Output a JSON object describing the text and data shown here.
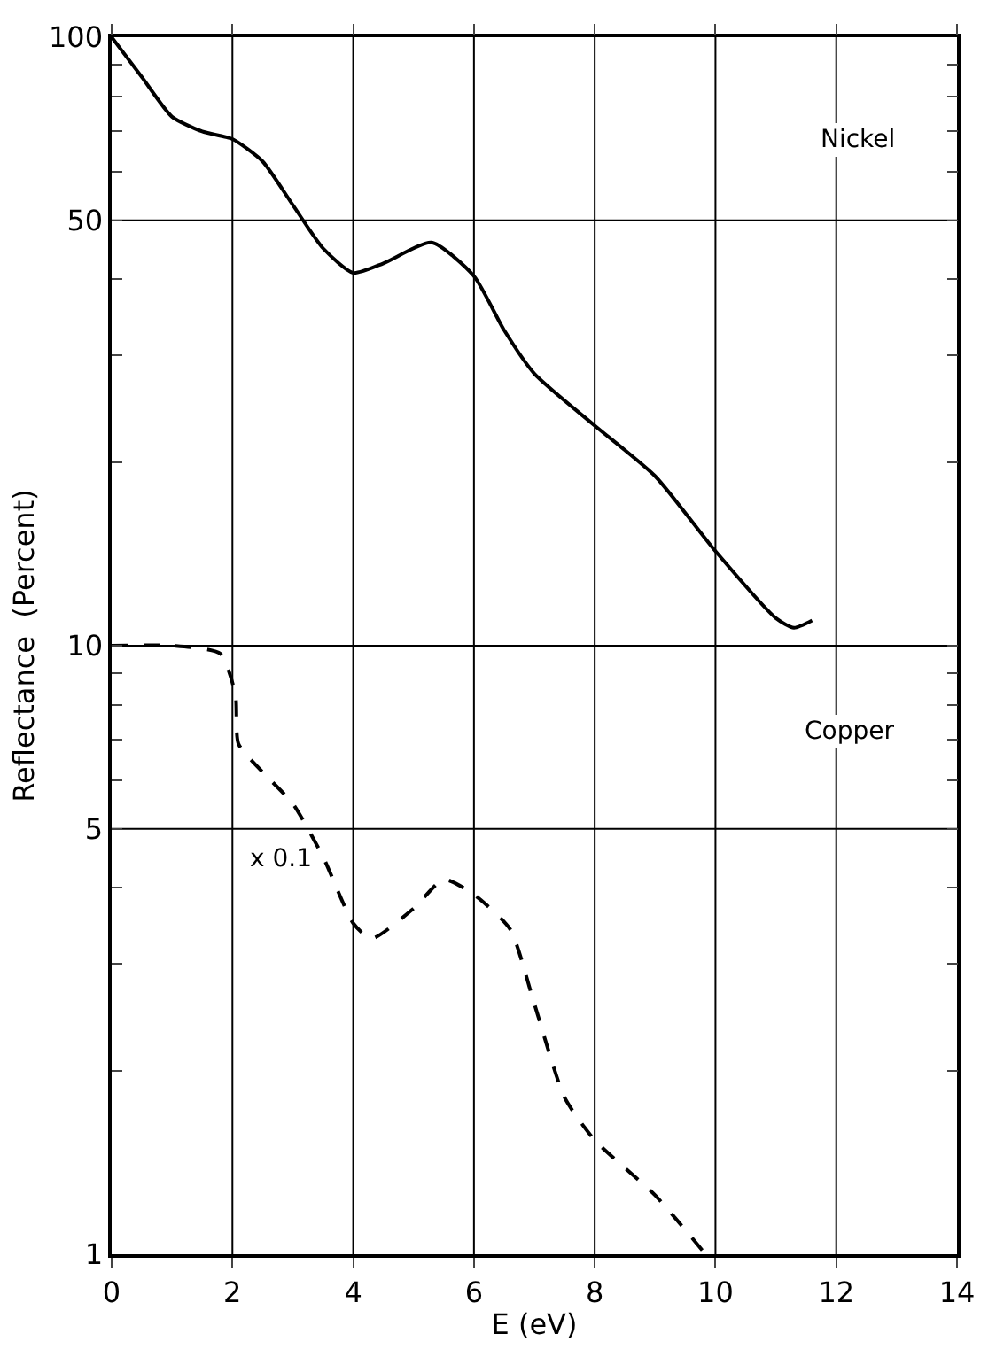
{
  "chart_data": {
    "type": "line",
    "xlabel": "E (eV)",
    "ylabel": "Reflectance  (Percent)",
    "log": "y",
    "grid": true,
    "legend": false,
    "marker": "none",
    "xlim": [
      0,
      14
    ],
    "xticks": [
      0,
      2,
      4,
      6,
      8,
      10,
      12,
      14
    ],
    "ylim": [
      1,
      100
    ],
    "yticks": [
      1,
      {
        "value": 2,
        "label": null
      },
      {
        "value": 3,
        "label": null
      },
      {
        "value": 4,
        "label": null
      },
      5,
      {
        "value": 6,
        "label": null
      },
      {
        "value": 7,
        "label": null
      },
      {
        "value": 8,
        "label": null
      },
      {
        "value": 9,
        "label": null
      },
      10,
      {
        "value": 20,
        "label": null
      },
      {
        "value": 30,
        "label": null
      },
      {
        "value": 40,
        "label": null
      },
      50,
      {
        "value": 60,
        "label": null
      },
      {
        "value": 70,
        "label": null
      },
      {
        "value": 80,
        "label": null
      },
      {
        "value": 90,
        "label": null
      },
      100
    ],
    "series": [
      {
        "name": "Nickel",
        "color": "#000000",
        "line_style": "solid",
        "x": [
          0,
          0.5,
          1,
          1.5,
          2,
          2.5,
          3,
          3.5,
          4,
          4.5,
          5.3,
          6,
          6.5,
          7,
          8,
          9,
          10,
          11,
          11.3,
          11.6
        ],
        "values": [
          100,
          86,
          74,
          70,
          68,
          62.5,
          53,
          45,
          41,
          42.5,
          46,
          40.5,
          33,
          28,
          23,
          19,
          14.3,
          11.1,
          10.7,
          11
        ]
      },
      {
        "name": "Copper",
        "color": "#000000",
        "line_style": "dashed",
        "x": [
          0,
          1,
          1.8,
          2.05,
          2.1,
          2.5,
          3,
          3.5,
          4,
          4.3,
          5,
          5.5,
          6,
          6.6,
          7,
          7.5,
          8,
          9,
          9.8
        ],
        "values": [
          10,
          10,
          9.7,
          8.3,
          6.9,
          6.2,
          5.5,
          4.5,
          3.5,
          3.3,
          3.7,
          4.13,
          3.9,
          3.42,
          2.58,
          1.81,
          1.54,
          1.25,
          1.01
        ]
      }
    ],
    "annotations": [
      "x 0.1"
    ]
  }
}
